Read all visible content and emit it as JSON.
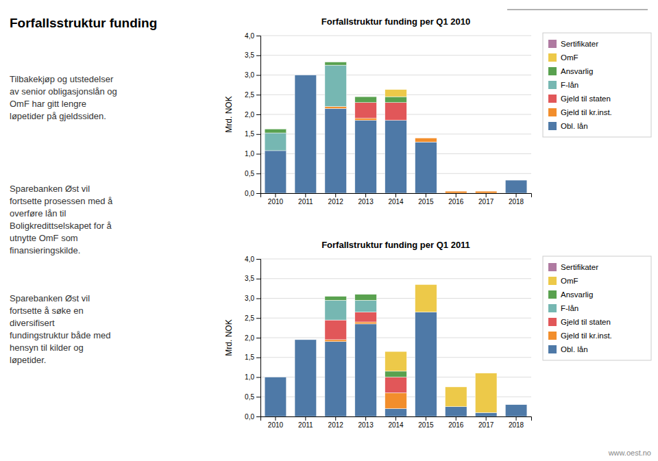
{
  "title": "Forfallsstruktur funding",
  "annotations": [
    "Tilbakekjøp og utstedelser\nav senior obligasjonslån og\nOmF har gitt lengre\nløpetider på gjeldssiden.",
    "Sparebanken Øst vil\nfortsette prosessen med å\noverføre lån til\nBoligkredittselskapet for å\nutnytte OmF som\nfinansieringskilde.",
    "Sparebanken Øst vil\nfortsette å søke en\ndiversifisert\nfundingstruktur både med\nhensyn til kilder og\nløpetider.",
    "www.oest.no"
  ],
  "chart_data": [
    {
      "type": "bar",
      "stacked": true,
      "title": "Forfallstruktur funding per Q1 2010",
      "y_label": "Mrd. NOK",
      "categories": [
        "2010",
        "2011",
        "2012",
        "2013",
        "2014",
        "2015",
        "2016",
        "2017",
        "2018"
      ],
      "series": [
        {
          "name": "Obl. lån",
          "values": [
            1.08,
            3.0,
            2.15,
            1.85,
            1.85,
            1.3,
            0,
            0,
            0.33
          ]
        },
        {
          "name": "Gjeld til kr.inst.",
          "values": [
            0,
            0,
            0.05,
            0.05,
            0,
            0.1,
            0.05,
            0.05,
            0
          ]
        },
        {
          "name": "Gjeld til staten",
          "values": [
            0,
            0,
            0,
            0.4,
            0.45,
            0,
            0,
            0,
            0
          ]
        },
        {
          "name": "F-lån",
          "values": [
            0.45,
            0,
            1.05,
            0,
            0,
            0,
            0,
            0,
            0
          ]
        },
        {
          "name": "Ansvarlig",
          "values": [
            0.1,
            0,
            0.08,
            0.15,
            0.15,
            0,
            0,
            0,
            0
          ]
        },
        {
          "name": "OmF",
          "values": [
            0,
            0,
            0,
            0,
            0.18,
            0,
            0,
            0,
            0
          ]
        },
        {
          "name": "Sertifikater",
          "values": [
            0,
            0,
            0,
            0,
            0,
            0,
            0,
            0,
            0
          ]
        }
      ],
      "ylim": [
        0,
        4.0
      ],
      "yticks": [
        {
          "value": 0.0,
          "label": "0,0"
        },
        {
          "value": 0.5,
          "label": "0,5"
        },
        {
          "value": 1.0,
          "label": "1,0"
        },
        {
          "value": 1.5,
          "label": "1,5"
        },
        {
          "value": 2.0,
          "label": "2,0"
        },
        {
          "value": 2.5,
          "label": "2,5"
        },
        {
          "value": 3.0,
          "label": "3,0"
        },
        {
          "value": 3.5,
          "label": "3,5"
        },
        {
          "value": 4.0,
          "label": "4,0"
        }
      ],
      "grid": true,
      "legend": "right"
    },
    {
      "type": "bar",
      "stacked": true,
      "title": "Forfallstruktur funding per Q1 2011",
      "y_label": "Mrd. NOK",
      "categories": [
        "2010",
        "2011",
        "2012",
        "2013",
        "2014",
        "2015",
        "2016",
        "2017",
        "2018"
      ],
      "series": [
        {
          "name": "Obl. lån",
          "values": [
            1.0,
            1.95,
            1.9,
            2.35,
            0.2,
            2.65,
            0.25,
            0.1,
            0.3
          ]
        },
        {
          "name": "Gjeld til kr.inst.",
          "values": [
            0,
            0,
            0.05,
            0.05,
            0.4,
            0,
            0,
            0,
            0
          ]
        },
        {
          "name": "Gjeld til staten",
          "values": [
            0,
            0,
            0.5,
            0.25,
            0.4,
            0,
            0,
            0,
            0
          ]
        },
        {
          "name": "F-lån",
          "values": [
            0,
            0,
            0.5,
            0.3,
            0,
            0,
            0,
            0,
            0
          ]
        },
        {
          "name": "Ansvarlig",
          "values": [
            0,
            0,
            0.1,
            0.15,
            0.15,
            0,
            0,
            0,
            0
          ]
        },
        {
          "name": "OmF",
          "values": [
            0,
            0,
            0,
            0,
            0.5,
            0.7,
            0.5,
            1.0,
            0
          ]
        },
        {
          "name": "Sertifikater",
          "values": [
            0,
            0,
            0,
            0,
            0,
            0,
            0,
            0,
            0
          ]
        }
      ],
      "ylim": [
        0,
        4.0
      ],
      "yticks": [
        {
          "value": 0.0,
          "label": "0,0"
        },
        {
          "value": 0.5,
          "label": "0,5"
        },
        {
          "value": 1.0,
          "label": "1,0"
        },
        {
          "value": 1.5,
          "label": "1,5"
        },
        {
          "value": 2.0,
          "label": "2,0"
        },
        {
          "value": 2.5,
          "label": "2,5"
        },
        {
          "value": 3.0,
          "label": "3,0"
        },
        {
          "value": 3.5,
          "label": "3,5"
        },
        {
          "value": 4.0,
          "label": "4,0"
        }
      ],
      "grid": true,
      "legend": "right"
    }
  ]
}
